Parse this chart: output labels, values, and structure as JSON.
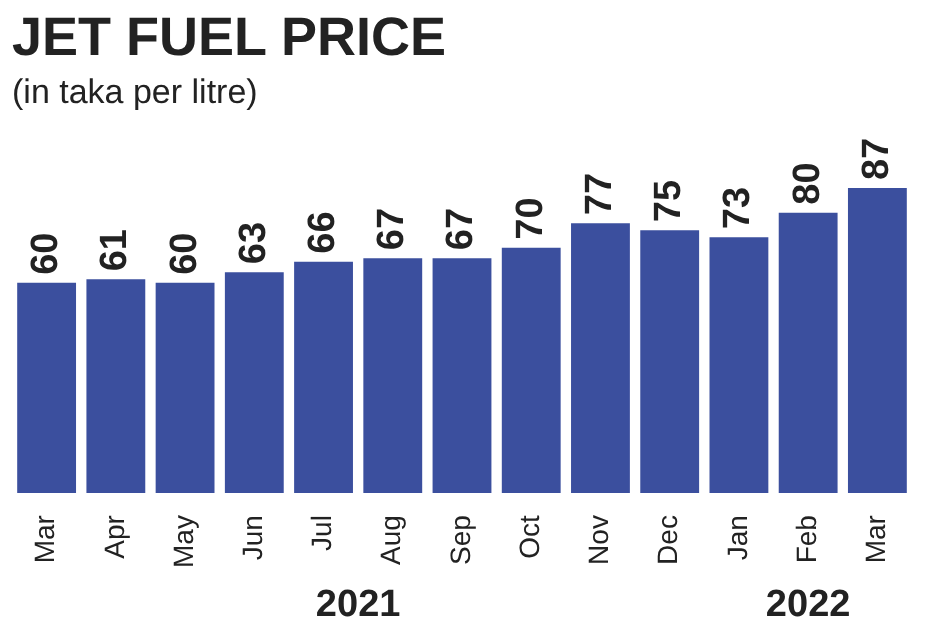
{
  "chart_data": {
    "type": "bar",
    "title": "JET FUEL PRICE",
    "subtitle": "(in taka per litre)",
    "categories": [
      "Mar",
      "Apr",
      "May",
      "Jun",
      "Jul",
      "Aug",
      "Sep",
      "Oct",
      "Nov",
      "Dec",
      "Jan",
      "Feb",
      "Mar"
    ],
    "values": [
      60,
      61,
      60,
      63,
      66,
      67,
      67,
      70,
      77,
      75,
      73,
      80,
      87
    ],
    "color": "#3b4f9e",
    "data_labels": true,
    "tick_labels": "x",
    "grid": false,
    "legend": false,
    "annotations": [
      "2021",
      "2022"
    ]
  }
}
